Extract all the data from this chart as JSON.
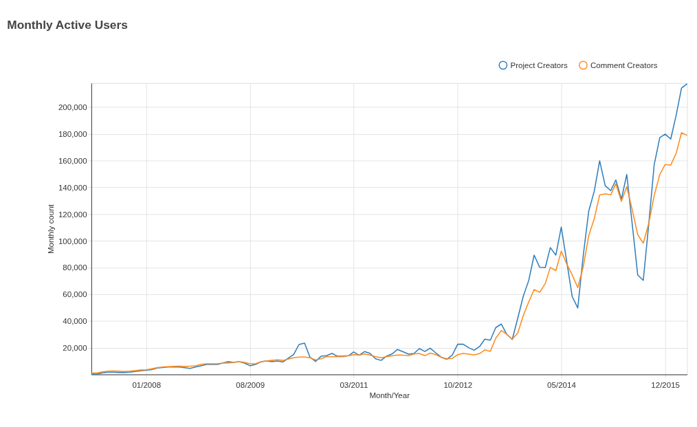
{
  "chart_data": {
    "type": "line",
    "title": "Monthly Active Users",
    "xlabel": "Month/Year",
    "ylabel": "Monthly count",
    "x": [
      "2007-03",
      "2007-04",
      "2007-05",
      "2007-06",
      "2007-07",
      "2007-08",
      "2007-09",
      "2007-10",
      "2007-11",
      "2007-12",
      "2008-01",
      "2008-02",
      "2008-03",
      "2008-04",
      "2008-05",
      "2008-06",
      "2008-07",
      "2008-08",
      "2008-09",
      "2008-10",
      "2008-11",
      "2008-12",
      "2009-01",
      "2009-02",
      "2009-03",
      "2009-04",
      "2009-05",
      "2009-06",
      "2009-07",
      "2009-08",
      "2009-09",
      "2009-10",
      "2009-11",
      "2009-12",
      "2010-01",
      "2010-02",
      "2010-03",
      "2010-04",
      "2010-05",
      "2010-06",
      "2010-07",
      "2010-08",
      "2010-09",
      "2010-10",
      "2010-11",
      "2010-12",
      "2011-01",
      "2011-02",
      "2011-03",
      "2011-04",
      "2011-05",
      "2011-06",
      "2011-07",
      "2011-08",
      "2011-09",
      "2011-10",
      "2011-11",
      "2011-12",
      "2012-01",
      "2012-02",
      "2012-03",
      "2012-04",
      "2012-05",
      "2012-06",
      "2012-07",
      "2012-08",
      "2012-09",
      "2012-10",
      "2012-11",
      "2012-12",
      "2013-01",
      "2013-02",
      "2013-03",
      "2013-04",
      "2013-05",
      "2013-06",
      "2013-07",
      "2013-08",
      "2013-09",
      "2013-10",
      "2013-11",
      "2013-12",
      "2014-01",
      "2014-02",
      "2014-03",
      "2014-04",
      "2014-05",
      "2014-06",
      "2014-07",
      "2014-08",
      "2014-09",
      "2014-10",
      "2014-11",
      "2014-12",
      "2015-01",
      "2015-02",
      "2015-03",
      "2015-04",
      "2015-05",
      "2015-06",
      "2015-07",
      "2015-08",
      "2015-09",
      "2015-10",
      "2015-11",
      "2015-12",
      "2016-01",
      "2016-02",
      "2016-03",
      "2016-04"
    ],
    "series": [
      {
        "name": "Project Creators",
        "color": "#2f7ebc",
        "values": [
          300,
          300,
          1200,
          1700,
          1700,
          1500,
          1400,
          1700,
          2200,
          2700,
          3100,
          3600,
          4800,
          5200,
          5500,
          5600,
          5500,
          5000,
          4500,
          5500,
          6500,
          7500,
          7500,
          7500,
          8500,
          9500,
          9000,
          9500,
          8500,
          6500,
          7500,
          9500,
          10000,
          9500,
          10000,
          9300,
          12000,
          14900,
          22400,
          23400,
          12900,
          9700,
          13600,
          14000,
          15700,
          13600,
          13600,
          14000,
          16800,
          14400,
          17100,
          15700,
          11700,
          10500,
          13700,
          15300,
          18700,
          17000,
          15200,
          15700,
          19300,
          17200,
          19600,
          16100,
          12900,
          11300,
          14500,
          22600,
          22600,
          20000,
          18100,
          21000,
          26400,
          25600,
          35000,
          37700,
          30100,
          26100,
          42200,
          58300,
          70400,
          89300,
          80100,
          80000,
          94900,
          89300,
          110200,
          84100,
          58300,
          49700,
          89500,
          122100,
          137200,
          159800,
          141200,
          137500,
          145500,
          131100,
          149600,
          111700,
          74400,
          70400,
          113300,
          157100,
          177200,
          179800,
          176100,
          194400,
          214300,
          217500
        ]
      },
      {
        "name": "Comment Creators",
        "color": "#ff8a1c",
        "values": [
          1000,
          1000,
          2000,
          2500,
          2600,
          2400,
          2200,
          2400,
          2900,
          3300,
          3500,
          4200,
          5000,
          5500,
          5800,
          6000,
          6200,
          6000,
          6200,
          6500,
          7500,
          8000,
          8000,
          8000,
          8500,
          8500,
          9000,
          9500,
          9000,
          8000,
          8000,
          9500,
          10000,
          10500,
          11000,
          10500,
          11500,
          12500,
          13000,
          13000,
          12500,
          10800,
          11700,
          13300,
          13300,
          13300,
          13300,
          14000,
          14800,
          14400,
          15300,
          14400,
          13300,
          12500,
          13300,
          13900,
          14500,
          14400,
          14000,
          15300,
          15700,
          14000,
          16000,
          14800,
          12900,
          11700,
          12000,
          14800,
          15700,
          15200,
          14500,
          15700,
          18400,
          17300,
          27000,
          32900,
          30100,
          26400,
          31000,
          43900,
          54300,
          63500,
          61500,
          68000,
          80100,
          77700,
          92200,
          82500,
          74400,
          65000,
          80800,
          103800,
          116500,
          134300,
          135100,
          134400,
          142700,
          129500,
          140400,
          122900,
          104600,
          98200,
          113300,
          134000,
          149600,
          157100,
          156600,
          165800,
          180900,
          178900
        ]
      }
    ],
    "xlim": [
      "2007-03",
      "2016-04"
    ],
    "xticks": [
      {
        "value": "2008-01",
        "label": "01/2008"
      },
      {
        "value": "2009-08",
        "label": "08/2009"
      },
      {
        "value": "2011-03",
        "label": "03/2011"
      },
      {
        "value": "2012-10",
        "label": "10/2012"
      },
      {
        "value": "2014-05",
        "label": "05/2014"
      },
      {
        "value": "2015-12",
        "label": "12/2015"
      }
    ],
    "ylim": [
      0,
      218000
    ],
    "yticks": [
      {
        "value": 20000,
        "label": "20,000"
      },
      {
        "value": 40000,
        "label": "40,000"
      },
      {
        "value": 60000,
        "label": "60,000"
      },
      {
        "value": 80000,
        "label": "80,000"
      },
      {
        "value": 100000,
        "label": "100,000"
      },
      {
        "value": 120000,
        "label": "120,000"
      },
      {
        "value": 140000,
        "label": "140,000"
      },
      {
        "value": 160000,
        "label": "160,000"
      },
      {
        "value": 180000,
        "label": "180,000"
      },
      {
        "value": 200000,
        "label": "200,000"
      }
    ],
    "grid": true,
    "legend": "top right",
    "marker": "none",
    "line_style": "solid"
  }
}
